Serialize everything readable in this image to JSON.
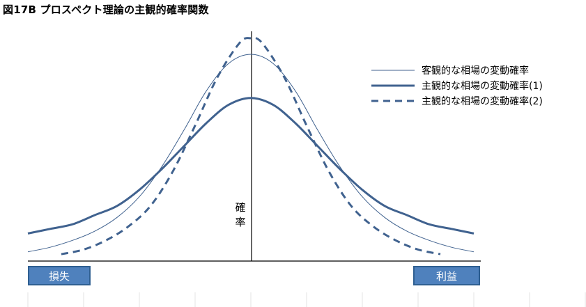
{
  "title": "図17B プロスペクト理論の主観的確率関数",
  "colors": {
    "series": "#40628f",
    "axis": "#000000",
    "button_bg": "#4f81bd",
    "button_border": "#2f5f91"
  },
  "buttons": {
    "loss": "損失",
    "profit": "利益"
  },
  "chart_data": {
    "type": "line",
    "ylabel": "確率",
    "legend_position": "top-right",
    "grid": false,
    "x_range": [
      -1,
      1
    ],
    "y_range": [
      0,
      1
    ],
    "series": [
      {
        "name": "客観的な相場の変動確率",
        "style": "thin-solid",
        "points": [
          [
            -1,
            0.04
          ],
          [
            -0.9,
            0.06
          ],
          [
            -0.8,
            0.09
          ],
          [
            -0.7,
            0.13
          ],
          [
            -0.6,
            0.19
          ],
          [
            -0.5,
            0.28
          ],
          [
            -0.4,
            0.41
          ],
          [
            -0.3,
            0.57
          ],
          [
            -0.2,
            0.74
          ],
          [
            -0.1,
            0.86
          ],
          [
            0,
            0.9
          ],
          [
            0.1,
            0.86
          ],
          [
            0.2,
            0.74
          ],
          [
            0.3,
            0.57
          ],
          [
            0.4,
            0.41
          ],
          [
            0.5,
            0.28
          ],
          [
            0.6,
            0.19
          ],
          [
            0.7,
            0.13
          ],
          [
            0.8,
            0.09
          ],
          [
            0.9,
            0.06
          ],
          [
            1,
            0.04
          ]
        ]
      },
      {
        "name": "主観的な相場の変動確率(1)",
        "style": "thick-solid",
        "points": [
          [
            -1,
            0.12
          ],
          [
            -0.9,
            0.14
          ],
          [
            -0.8,
            0.16
          ],
          [
            -0.7,
            0.2
          ],
          [
            -0.6,
            0.24
          ],
          [
            -0.5,
            0.31
          ],
          [
            -0.4,
            0.4
          ],
          [
            -0.3,
            0.5
          ],
          [
            -0.2,
            0.6
          ],
          [
            -0.1,
            0.68
          ],
          [
            0,
            0.71
          ],
          [
            0.1,
            0.68
          ],
          [
            0.2,
            0.6
          ],
          [
            0.3,
            0.5
          ],
          [
            0.4,
            0.4
          ],
          [
            0.5,
            0.31
          ],
          [
            0.6,
            0.24
          ],
          [
            0.7,
            0.2
          ],
          [
            0.8,
            0.16
          ],
          [
            0.9,
            0.14
          ],
          [
            1,
            0.12
          ]
        ]
      },
      {
        "name": "主観的な相場の変動確率(2)",
        "style": "dashed",
        "points": [
          [
            -0.85,
            0.03
          ],
          [
            -0.75,
            0.05
          ],
          [
            -0.65,
            0.09
          ],
          [
            -0.55,
            0.15
          ],
          [
            -0.45,
            0.24
          ],
          [
            -0.35,
            0.39
          ],
          [
            -0.25,
            0.59
          ],
          [
            -0.15,
            0.8
          ],
          [
            -0.05,
            0.95
          ],
          [
            0,
            0.97
          ],
          [
            0.05,
            0.95
          ],
          [
            0.15,
            0.8
          ],
          [
            0.25,
            0.59
          ],
          [
            0.35,
            0.39
          ],
          [
            0.45,
            0.24
          ],
          [
            0.55,
            0.15
          ],
          [
            0.65,
            0.09
          ],
          [
            0.75,
            0.05
          ],
          [
            0.85,
            0.03
          ]
        ]
      }
    ]
  }
}
